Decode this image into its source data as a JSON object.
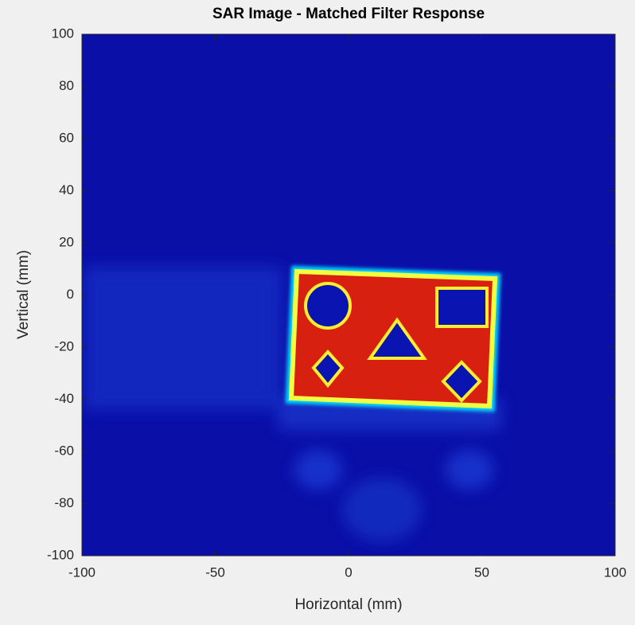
{
  "chart_data": {
    "type": "image",
    "title": "SAR Image - Matched Filter Response",
    "x_label": "Horizontal (mm)",
    "y_label": "Vertical (mm)",
    "xlim": [
      -100,
      100
    ],
    "xticks": [
      -100,
      -50,
      0,
      50,
      100
    ],
    "ylim": [
      -100,
      100
    ],
    "yticks": [
      -100,
      -80,
      -60,
      -40,
      -20,
      0,
      20,
      40,
      60,
      80,
      100
    ],
    "colormap": "jet"
  }
}
